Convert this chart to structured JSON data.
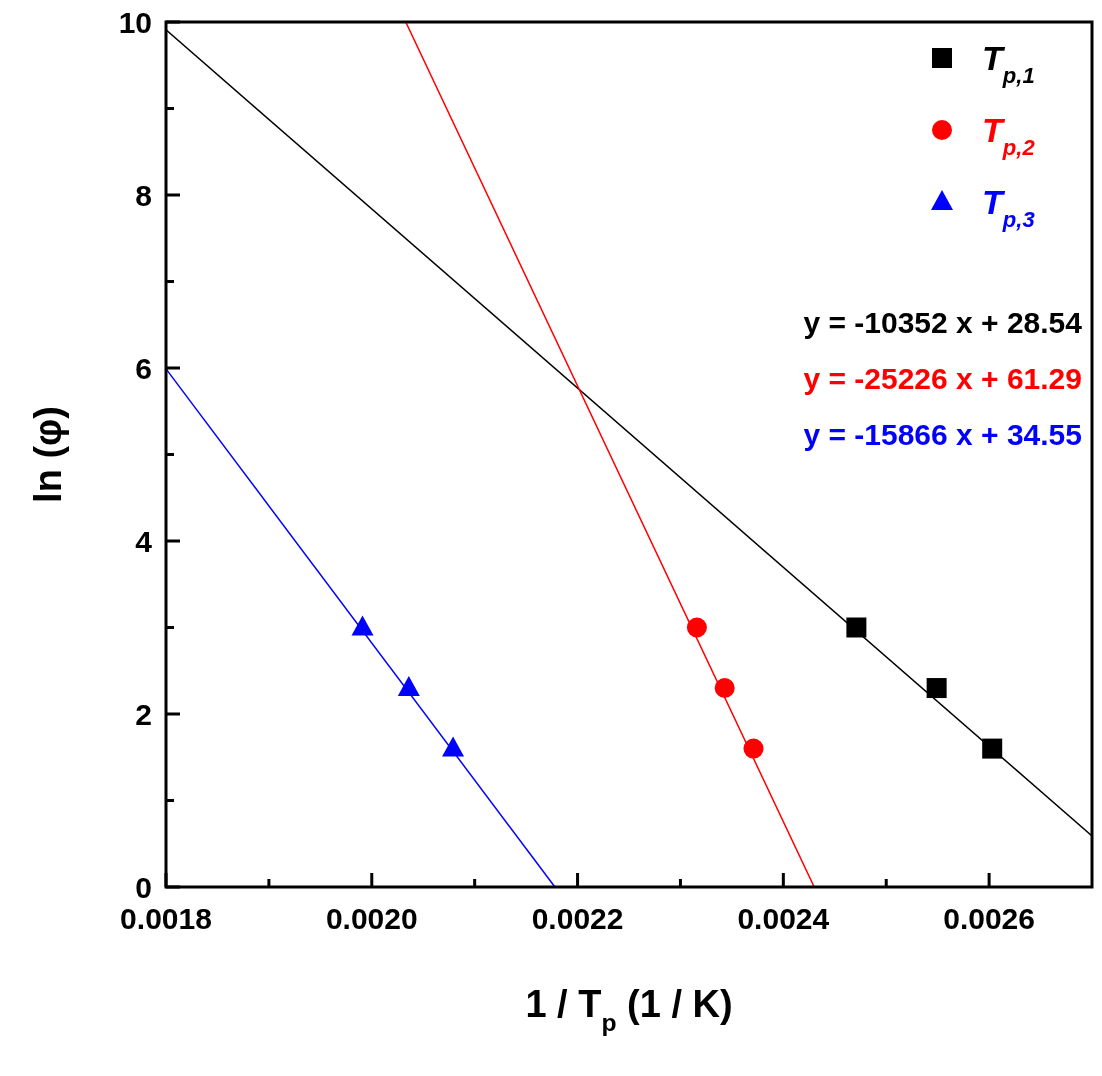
{
  "chart_data": {
    "type": "scatter",
    "xlabel": "1 / T$_{p}$ (1 / K)",
    "ylabel": "ln (φ)",
    "xlim": [
      0.0018,
      0.0027
    ],
    "ylim": [
      0,
      10
    ],
    "xticks": [
      {
        "value": 0.0018,
        "label": "0.0018"
      },
      {
        "value": 0.0019,
        "label": null
      },
      {
        "value": 0.002,
        "label": "0.0020"
      },
      {
        "value": 0.0021,
        "label": null
      },
      {
        "value": 0.0022,
        "label": "0.0022"
      },
      {
        "value": 0.0023,
        "label": null
      },
      {
        "value": 0.0024,
        "label": "0.0024"
      },
      {
        "value": 0.0025,
        "label": null
      },
      {
        "value": 0.0026,
        "label": "0.0026"
      }
    ],
    "yticks": [
      0,
      {
        "value": 1,
        "label": null
      },
      2,
      {
        "value": 3,
        "label": null
      },
      4,
      {
        "value": 5,
        "label": null
      },
      6,
      {
        "value": 7,
        "label": null
      },
      8,
      {
        "value": 9,
        "label": null
      },
      10
    ],
    "series": [
      {
        "name": "T$_{p,1}$",
        "color": "#000000",
        "marker": "square",
        "x": [
          0.002471,
          0.002549,
          0.002603
        ],
        "values": [
          3.0,
          2.3,
          1.6
        ]
      },
      {
        "name": "T$_{p,2}$",
        "color": "#ff0000",
        "marker": "circle",
        "x": [
          0.002316,
          0.002343,
          0.002371
        ],
        "values": [
          3.0,
          2.3,
          1.6
        ]
      },
      {
        "name": "T$_{p,3}$",
        "color": "#0000ff",
        "marker": "triangle",
        "x": [
          0.001991,
          0.002036,
          0.002079
        ],
        "values": [
          3.0,
          2.3,
          1.6
        ]
      },
      {
        "type": "line",
        "color": "#000000",
        "x": [
          0.0018,
          0.0027
        ],
        "values": [
          9.91,
          0.59
        ]
      },
      {
        "type": "line",
        "color": "#ff0000",
        "x": [
          0.002033,
          0.00243
        ],
        "values": [
          10,
          0
        ]
      },
      {
        "type": "line",
        "color": "#0000ff",
        "x": [
          0.0018,
          0.002178
        ],
        "values": [
          5.99,
          0
        ]
      }
    ],
    "annotations": [
      "y = -10352 x + 28.54",
      "y = -25226 x + 61.29",
      "y = -15866 x + 34.55"
    ],
    "legend": "top right",
    "grid": false
  }
}
